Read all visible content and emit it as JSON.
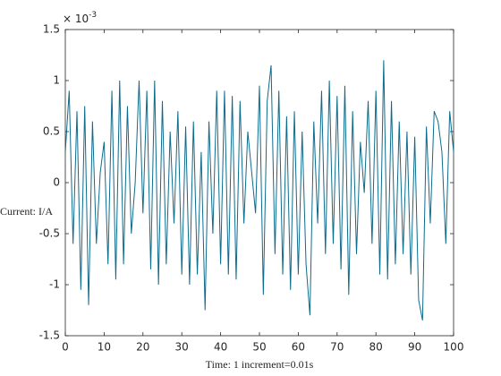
{
  "chart_data": {
    "type": "line",
    "y_label": "Current: I/A",
    "x_label": "Time: 1 increment=0.01s",
    "y_exponent": {
      "base": "× 10",
      "power": "-3"
    },
    "xlim": [
      0,
      100
    ],
    "xticks": [
      0,
      10,
      20,
      30,
      40,
      50,
      60,
      70,
      80,
      90,
      100
    ],
    "ylim": [
      -1.5,
      1.5
    ],
    "yticks": [
      -1.5,
      -1,
      -0.5,
      0,
      0.5,
      1,
      1.5
    ],
    "x": [
      0,
      1,
      2,
      3,
      4,
      5,
      6,
      7,
      8,
      9,
      10,
      11,
      12,
      13,
      14,
      15,
      16,
      17,
      18,
      19,
      20,
      21,
      22,
      23,
      24,
      25,
      26,
      27,
      28,
      29,
      30,
      31,
      32,
      33,
      34,
      35,
      36,
      37,
      38,
      39,
      40,
      41,
      42,
      43,
      44,
      45,
      46,
      47,
      48,
      49,
      50,
      51,
      52,
      53,
      54,
      55,
      56,
      57,
      58,
      59,
      60,
      61,
      62,
      63,
      64,
      65,
      66,
      67,
      68,
      69,
      70,
      71,
      72,
      73,
      74,
      75,
      76,
      77,
      78,
      79,
      80,
      81,
      82,
      83,
      84,
      85,
      86,
      87,
      88,
      89,
      90,
      91,
      92,
      93,
      94,
      95,
      96,
      97,
      98,
      99,
      100
    ],
    "series": [
      {
        "color": "#0e6b8c",
        "values": [
          0.3,
          0.9,
          -0.6,
          0.7,
          -1.05,
          0.75,
          -1.2,
          0.6,
          -0.6,
          0.1,
          0.4,
          -0.8,
          0.9,
          -0.95,
          1.0,
          -0.8,
          0.75,
          -0.5,
          0.0,
          1.0,
          -0.3,
          0.9,
          -0.85,
          1.0,
          -1.0,
          0.8,
          -0.8,
          0.5,
          -0.4,
          0.7,
          -0.9,
          0.55,
          -1.0,
          0.6,
          -0.9,
          0.3,
          -1.25,
          0.6,
          -0.5,
          0.9,
          -0.8,
          0.9,
          -0.9,
          0.85,
          -0.95,
          0.8,
          -0.4,
          0.5,
          0.1,
          -0.3,
          0.95,
          -1.1,
          0.8,
          1.15,
          -0.7,
          0.9,
          -0.9,
          0.65,
          -1.05,
          0.7,
          -0.9,
          0.5,
          -0.8,
          -1.3,
          0.6,
          -0.4,
          0.9,
          -0.7,
          1.0,
          -0.6,
          0.85,
          -0.85,
          0.95,
          -1.1,
          0.7,
          -0.7,
          0.4,
          -0.1,
          0.8,
          -0.6,
          0.9,
          -0.9,
          1.2,
          -0.95,
          0.8,
          -0.8,
          0.6,
          -0.7,
          0.5,
          -0.9,
          0.45,
          -1.15,
          -1.35,
          0.55,
          -0.4,
          0.7,
          0.6,
          0.3,
          -0.6,
          0.7,
          0.3
        ]
      }
    ]
  }
}
